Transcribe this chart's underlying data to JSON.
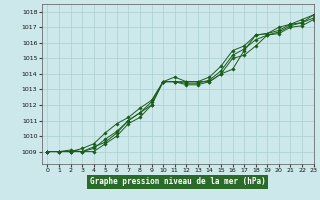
{
  "title": "Graphe pression niveau de la mer (hPa)",
  "xlim": [
    -0.5,
    23
  ],
  "ylim": [
    1008.2,
    1018.5
  ],
  "yticks": [
    1009,
    1010,
    1011,
    1012,
    1013,
    1014,
    1015,
    1016,
    1017,
    1018
  ],
  "xticks": [
    0,
    1,
    2,
    3,
    4,
    5,
    6,
    7,
    8,
    9,
    10,
    11,
    12,
    13,
    14,
    15,
    16,
    17,
    18,
    19,
    20,
    21,
    22,
    23
  ],
  "bg_color": "#cce8ea",
  "grid_color": "#aacfcf",
  "line_color": "#1a5c1a",
  "lines": [
    [
      1009.0,
      1009.0,
      1009.0,
      1009.0,
      1009.3,
      1009.6,
      1010.2,
      1011.0,
      1011.5,
      1012.0,
      1013.5,
      1013.8,
      1013.5,
      1013.5,
      1013.5,
      1014.0,
      1014.3,
      1015.5,
      1016.5,
      1016.6,
      1017.0,
      1017.2,
      1017.5,
      1017.8
    ],
    [
      1009.0,
      1009.0,
      1009.1,
      1009.0,
      1009.0,
      1009.5,
      1010.0,
      1010.8,
      1011.2,
      1012.0,
      1013.5,
      1013.5,
      1013.3,
      1013.3,
      1013.5,
      1014.0,
      1015.0,
      1015.2,
      1015.8,
      1016.5,
      1016.6,
      1017.0,
      1017.1,
      1017.5
    ],
    [
      1009.0,
      1009.0,
      1009.0,
      1009.2,
      1009.5,
      1010.2,
      1010.8,
      1011.2,
      1011.8,
      1012.3,
      1013.5,
      1013.5,
      1013.5,
      1013.5,
      1013.8,
      1014.5,
      1015.5,
      1015.8,
      1016.5,
      1016.6,
      1016.8,
      1017.2,
      1017.3,
      1017.8
    ],
    [
      1009.0,
      1009.0,
      1009.0,
      1009.0,
      1009.2,
      1009.8,
      1010.3,
      1011.0,
      1011.5,
      1012.2,
      1013.5,
      1013.5,
      1013.4,
      1013.4,
      1013.6,
      1014.2,
      1015.2,
      1015.6,
      1016.2,
      1016.5,
      1016.7,
      1017.1,
      1017.3,
      1017.6
    ]
  ]
}
